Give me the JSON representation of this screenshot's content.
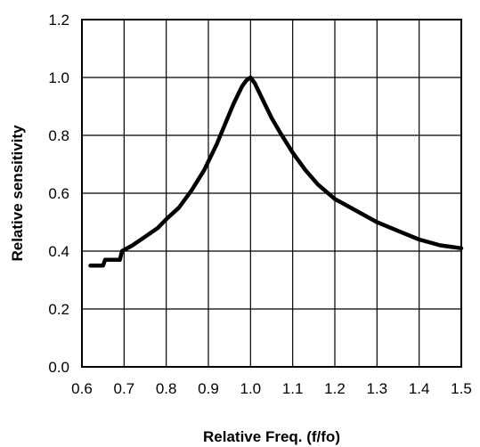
{
  "chart_data": {
    "type": "line",
    "title": "",
    "xlabel": "Relative Freq. (f/fo)",
    "ylabel": "Relative sensitivity",
    "xlim": [
      0.6,
      1.5
    ],
    "ylim": [
      0.0,
      1.2
    ],
    "xticks": [
      "0.6",
      "0.7",
      "0.8",
      "0.9",
      "1.0",
      "1.1",
      "1.2",
      "1.3",
      "1.4",
      "1.5"
    ],
    "yticks": [
      "0.0",
      "0.2",
      "0.4",
      "0.6",
      "0.8",
      "1.0",
      "1.2"
    ],
    "grid": true,
    "legend": "none",
    "series": [
      {
        "x": [
          0.62,
          0.65,
          0.655,
          0.69,
          0.695,
          0.72,
          0.75,
          0.78,
          0.8,
          0.83,
          0.86,
          0.89,
          0.92,
          0.94,
          0.96,
          0.98,
          0.99,
          1.0,
          1.01,
          1.03,
          1.05,
          1.07,
          1.1,
          1.13,
          1.16,
          1.2,
          1.25,
          1.3,
          1.35,
          1.4,
          1.45,
          1.5
        ],
        "y": [
          0.35,
          0.35,
          0.37,
          0.37,
          0.4,
          0.42,
          0.45,
          0.48,
          0.51,
          0.55,
          0.61,
          0.68,
          0.77,
          0.84,
          0.91,
          0.97,
          0.99,
          1.0,
          0.98,
          0.92,
          0.86,
          0.81,
          0.74,
          0.68,
          0.63,
          0.58,
          0.54,
          0.5,
          0.47,
          0.44,
          0.42,
          0.41
        ]
      }
    ]
  }
}
